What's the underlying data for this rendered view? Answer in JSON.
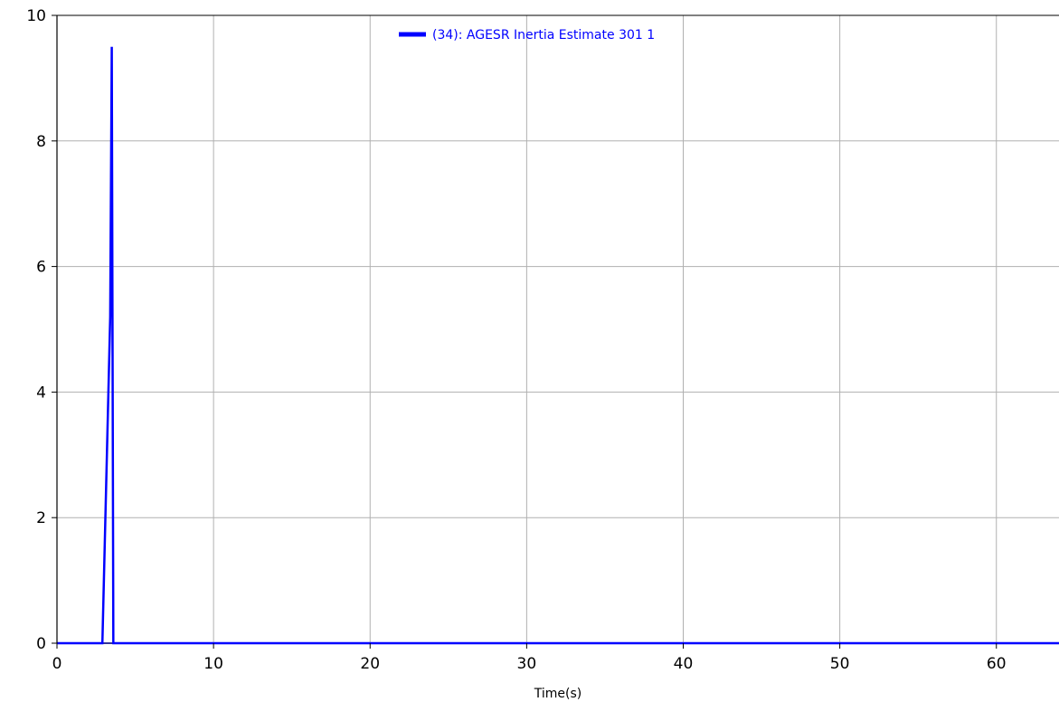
{
  "chart_data": {
    "type": "line",
    "title": "",
    "xlabel": "Time(s)",
    "ylabel": "",
    "xlim": [
      0,
      64
    ],
    "ylim": [
      0,
      10
    ],
    "x_ticks": [
      0,
      10,
      20,
      30,
      40,
      50,
      60
    ],
    "y_ticks": [
      0,
      2,
      4,
      6,
      8,
      10
    ],
    "x_tick_labels": [
      "0",
      "10",
      "20",
      "30",
      "40",
      "50",
      "60"
    ],
    "y_tick_labels": [
      "0",
      "2",
      "4",
      "6",
      "8",
      "10"
    ],
    "grid": true,
    "legend_position": "top-center",
    "colors": {
      "series": "#0000ff",
      "grid": "#b0b0b0",
      "axis": "#000000",
      "zero_line": "#333399"
    },
    "series": [
      {
        "name": "(34): AGESR Inertia Estimate 301 1",
        "color": "#0000ff",
        "x": [
          0,
          2.9,
          3.4,
          3.5,
          3.6,
          64
        ],
        "y": [
          0,
          0,
          5.2,
          9.5,
          0,
          0
        ]
      }
    ]
  }
}
